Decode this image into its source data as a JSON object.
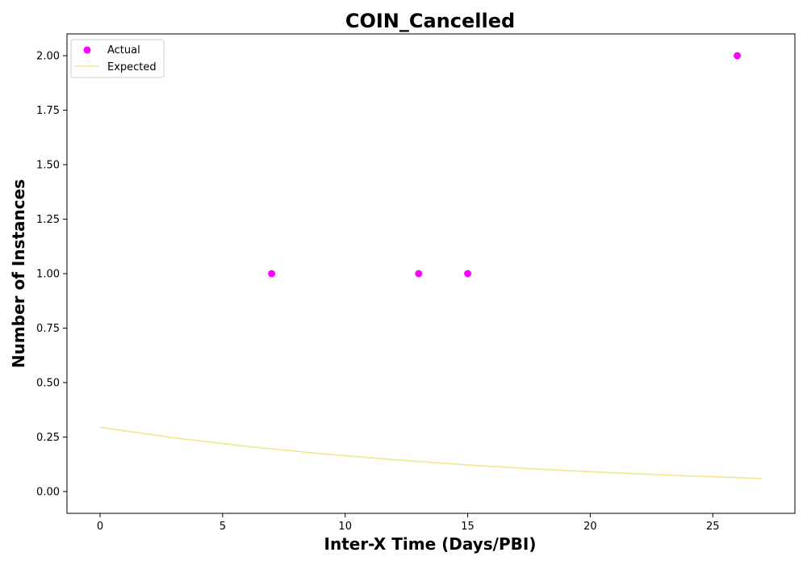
{
  "chart_data": {
    "type": "scatter",
    "title": "COIN_Cancelled",
    "xlabel": "Inter-X Time (Days/PBI)",
    "ylabel": "Number of Instances",
    "xlim": [
      -1.35,
      28.35
    ],
    "ylim": [
      -0.1,
      2.1
    ],
    "xticks": [
      0,
      5,
      10,
      15,
      20,
      25
    ],
    "xtick_labels": [
      "0",
      "5",
      "10",
      "15",
      "20",
      "25"
    ],
    "yticks": [
      0.0,
      0.25,
      0.5,
      0.75,
      1.0,
      1.25,
      1.5,
      1.75,
      2.0
    ],
    "ytick_labels": [
      "0.00",
      "0.25",
      "0.50",
      "0.75",
      "1.00",
      "1.25",
      "1.50",
      "1.75",
      "2.00"
    ],
    "grid": false,
    "legend_position": "top-left",
    "series": [
      {
        "name": "Actual",
        "kind": "scatter",
        "color": "#ff00ff",
        "points": [
          {
            "x": 7,
            "y": 1.0
          },
          {
            "x": 13,
            "y": 1.0
          },
          {
            "x": 15,
            "y": 1.0
          },
          {
            "x": 26,
            "y": 2.0
          }
        ]
      },
      {
        "name": "Expected",
        "kind": "line",
        "color": "#f0e68c",
        "points": [
          {
            "x": 0,
            "y": 0.295
          },
          {
            "x": 3,
            "y": 0.247
          },
          {
            "x": 6,
            "y": 0.207
          },
          {
            "x": 9,
            "y": 0.174
          },
          {
            "x": 12,
            "y": 0.146
          },
          {
            "x": 15,
            "y": 0.122
          },
          {
            "x": 18,
            "y": 0.102
          },
          {
            "x": 21,
            "y": 0.086
          },
          {
            "x": 24,
            "y": 0.072
          },
          {
            "x": 27,
            "y": 0.06
          }
        ]
      }
    ]
  }
}
